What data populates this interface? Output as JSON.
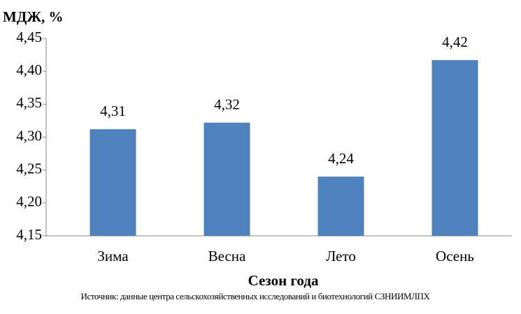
{
  "chart_data": {
    "type": "bar",
    "y_axis_title": "МДЖ, %",
    "x_axis_title": "Сезон года",
    "source": "Источник:  данные центра сельскохозяйственных исследований и биотехнологий СЗНИИМЛПХ",
    "categories": [
      "Зима",
      "Весна",
      "Лето",
      "Осень"
    ],
    "values": [
      4.312,
      4.322,
      4.24,
      4.417
    ],
    "value_labels": [
      "4,31",
      "4,32",
      "4,24",
      "4,42"
    ],
    "color": "#4f81bd",
    "ylim": [
      4.15,
      4.45
    ],
    "yticks": [
      {
        "value": 4.15,
        "label": "4,15"
      },
      {
        "value": 4.2,
        "label": "4,20"
      },
      {
        "value": 4.25,
        "label": "4,25"
      },
      {
        "value": 4.3,
        "label": "4,30"
      },
      {
        "value": 4.35,
        "label": "4,35"
      },
      {
        "value": 4.4,
        "label": "4,40"
      },
      {
        "value": 4.45,
        "label": "4,45"
      }
    ],
    "grid": false
  }
}
